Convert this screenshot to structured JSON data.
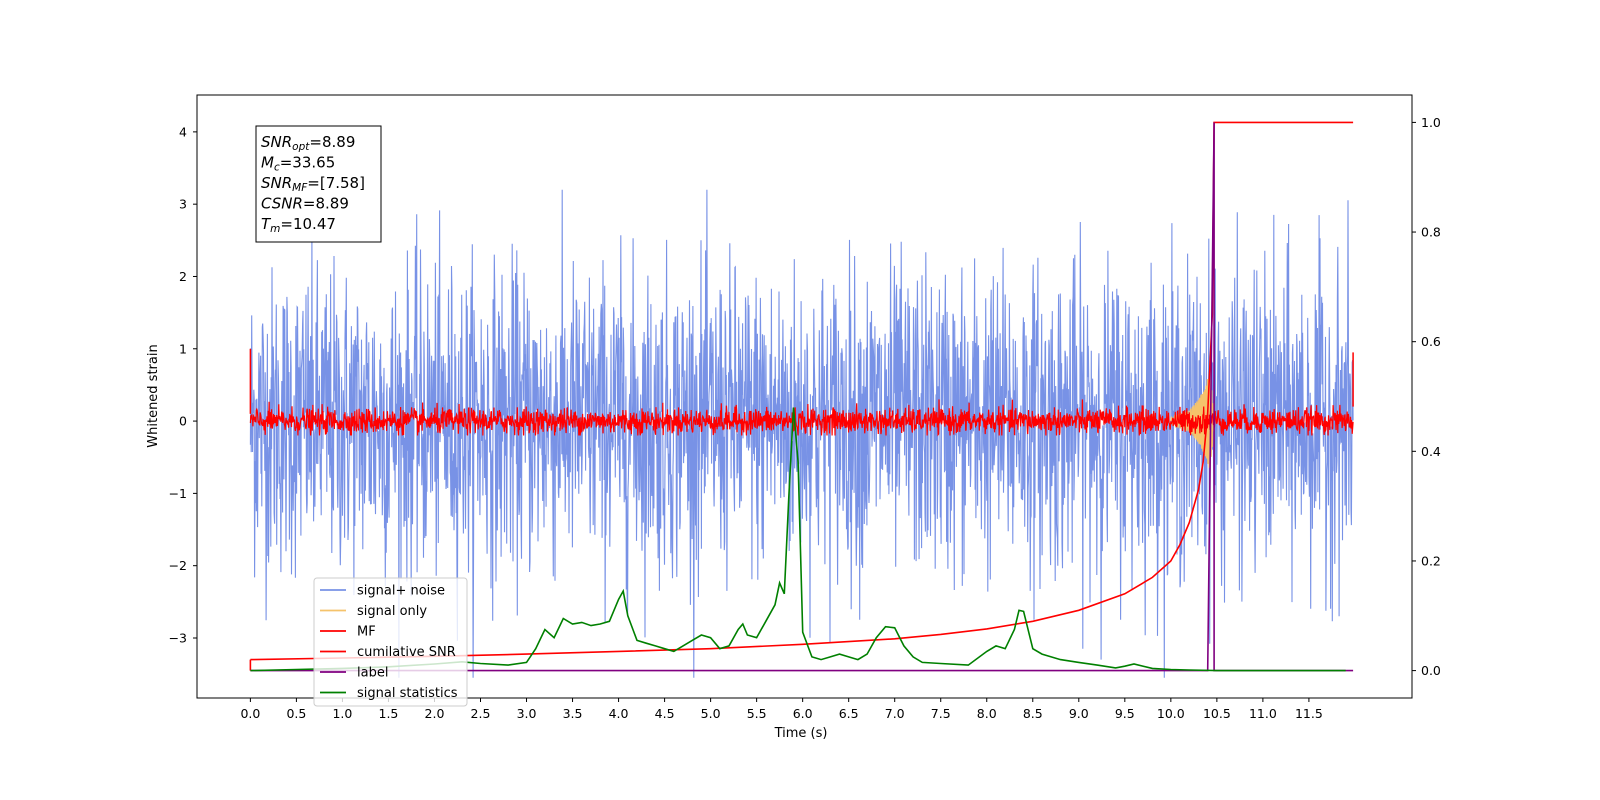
{
  "chart_data": {
    "type": "line",
    "xlabel": "Time (s)",
    "ylabel": "Whitened strain",
    "xlim": [
      -0.58,
      12.62
    ],
    "ylim": [
      -3.83,
      4.51
    ],
    "y2lim": [
      -0.05,
      1.05
    ],
    "x_ticks": [
      "0.0",
      "0.5",
      "1.0",
      "1.5",
      "2.0",
      "2.5",
      "3.0",
      "3.5",
      "4.0",
      "4.5",
      "5.0",
      "5.5",
      "6.0",
      "6.5",
      "7.0",
      "7.5",
      "8.0",
      "8.5",
      "9.0",
      "9.5",
      "10.0",
      "10.5",
      "11.0",
      "11.5"
    ],
    "y_ticks": [
      "4",
      "3",
      "2",
      "1",
      "0",
      "−1",
      "−2",
      "−3"
    ],
    "y2_ticks": [
      "1.0",
      "0.8",
      "0.6",
      "0.4",
      "0.2",
      "0.0"
    ],
    "legend": [
      "signal+ noise",
      "signal only",
      "MF",
      "cumilative SNR",
      "label",
      "signal statistics"
    ],
    "legend_position": "lower-left",
    "stats": [
      {
        "base": "SNR",
        "sub": "opt",
        "value": "=8.89"
      },
      {
        "base": "M",
        "sub": "c",
        "value": "=33.65"
      },
      {
        "base": "SNR",
        "sub": "MF",
        "value": "=[7.58]"
      },
      {
        "base": "CSNR",
        "sub": "",
        "value": "=8.89"
      },
      {
        "base": "T",
        "sub": "m",
        "value": "=10.47"
      }
    ],
    "series": [
      {
        "name": "signal+ noise",
        "axis": "left",
        "color": "#7892e6",
        "description": "whitened strain noise, approx. zero mean, range about -3.5 to 3.2 over 0-12 s",
        "amplitude_range": [
          -3.55,
          3.2
        ]
      },
      {
        "name": "signal only",
        "axis": "left",
        "color": "#f5c36b",
        "x": [
          10.0,
          10.2,
          10.3,
          10.38,
          10.42,
          10.45,
          10.47
        ],
        "amplitude": [
          0.05,
          0.15,
          0.3,
          0.5,
          0.7,
          0.4,
          0.0
        ]
      },
      {
        "name": "MF",
        "axis": "left",
        "color": "#ff0000",
        "description": "matched filter output, approx. zero mean, range about -0.2 to 0.3",
        "amplitude_range": [
          -0.2,
          0.3
        ]
      },
      {
        "name": "cumilative SNR",
        "axis": "right",
        "color": "#ff0000",
        "x": [
          0.0,
          1.0,
          2.0,
          3.0,
          4.0,
          5.0,
          6.0,
          7.0,
          7.5,
          8.0,
          8.5,
          9.0,
          9.5,
          9.8,
          10.0,
          10.1,
          10.2,
          10.3,
          10.35,
          10.4,
          10.45,
          10.47,
          10.5,
          11.0,
          11.5,
          11.98
        ],
        "values": [
          0.02,
          0.023,
          0.026,
          0.03,
          0.035,
          0.04,
          0.048,
          0.058,
          0.066,
          0.076,
          0.09,
          0.11,
          0.14,
          0.17,
          0.2,
          0.23,
          0.27,
          0.33,
          0.38,
          0.47,
          0.65,
          1.0,
          1.0,
          1.0,
          1.0,
          1.0
        ]
      },
      {
        "name": "label",
        "axis": "right",
        "color": "#800080",
        "x": [
          0.0,
          10.4,
          10.4,
          10.47,
          10.47,
          11.98
        ],
        "values": [
          0.0,
          0.0,
          0.0,
          1.0,
          0.0,
          0.0
        ]
      },
      {
        "name": "signal statistics",
        "axis": "right",
        "color": "#008000",
        "x": [
          0.0,
          0.5,
          1.0,
          1.5,
          2.0,
          2.3,
          2.5,
          2.8,
          3.0,
          3.1,
          3.2,
          3.3,
          3.4,
          3.5,
          3.6,
          3.7,
          3.8,
          3.9,
          4.0,
          4.05,
          4.1,
          4.2,
          4.3,
          4.4,
          4.5,
          4.6,
          4.7,
          4.8,
          4.9,
          5.0,
          5.1,
          5.2,
          5.3,
          5.35,
          5.4,
          5.5,
          5.6,
          5.7,
          5.75,
          5.8,
          5.85,
          5.9,
          5.95,
          6.0,
          6.1,
          6.2,
          6.3,
          6.4,
          6.5,
          6.6,
          6.7,
          6.8,
          6.9,
          7.0,
          7.1,
          7.2,
          7.3,
          7.5,
          7.8,
          8.0,
          8.1,
          8.2,
          8.3,
          8.35,
          8.4,
          8.5,
          8.6,
          8.7,
          8.8,
          9.0,
          9.2,
          9.4,
          9.5,
          9.6,
          9.8,
          10.0,
          10.2,
          10.5,
          11.0,
          11.5,
          11.9
        ],
        "values": [
          0.0,
          0.002,
          0.004,
          0.007,
          0.012,
          0.016,
          0.013,
          0.01,
          0.015,
          0.04,
          0.075,
          0.06,
          0.095,
          0.085,
          0.088,
          0.082,
          0.085,
          0.09,
          0.13,
          0.145,
          0.1,
          0.055,
          0.05,
          0.045,
          0.04,
          0.035,
          0.045,
          0.055,
          0.065,
          0.06,
          0.04,
          0.045,
          0.075,
          0.085,
          0.065,
          0.06,
          0.09,
          0.12,
          0.16,
          0.14,
          0.32,
          0.48,
          0.38,
          0.07,
          0.025,
          0.02,
          0.025,
          0.03,
          0.025,
          0.02,
          0.03,
          0.06,
          0.08,
          0.078,
          0.045,
          0.025,
          0.015,
          0.013,
          0.01,
          0.035,
          0.045,
          0.04,
          0.075,
          0.11,
          0.108,
          0.04,
          0.03,
          0.025,
          0.02,
          0.015,
          0.01,
          0.005,
          0.008,
          0.012,
          0.004,
          0.002,
          0.001,
          0.0,
          0.0,
          0.0,
          0.0
        ]
      }
    ]
  }
}
